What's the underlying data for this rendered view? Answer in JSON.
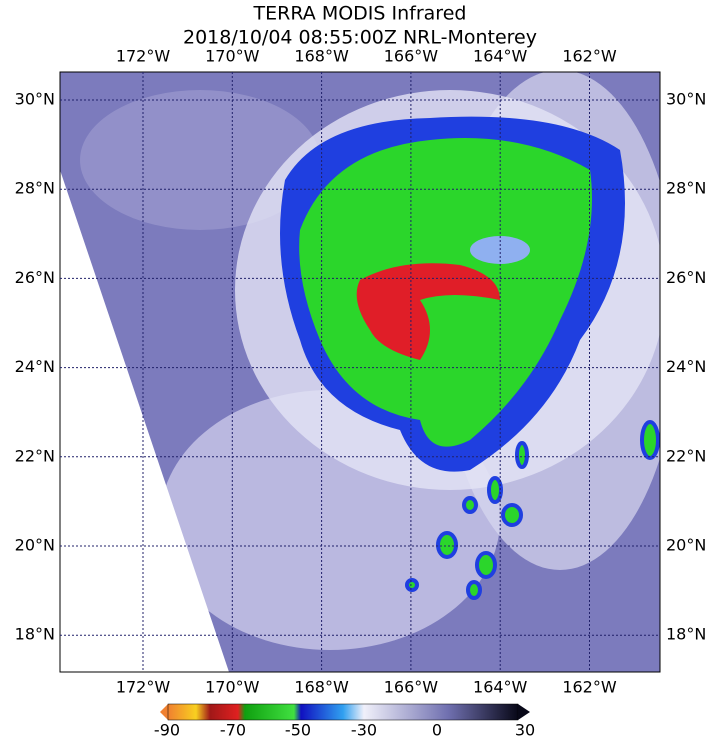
{
  "title": [
    "TERRA MODIS Infrared",
    "2018/10/04 08:55:00Z NRL-Monterey"
  ],
  "longitudes": [
    {
      "value": -172,
      "label": "172°W"
    },
    {
      "value": -170,
      "label": "170°W"
    },
    {
      "value": -168,
      "label": "168°W"
    },
    {
      "value": -166,
      "label": "166°W"
    },
    {
      "value": -164,
      "label": "164°W"
    },
    {
      "value": -162,
      "label": "162°W"
    }
  ],
  "latitudes": [
    {
      "value": 30,
      "label": "30°N"
    },
    {
      "value": 28,
      "label": "28°N"
    },
    {
      "value": 26,
      "label": "26°N"
    },
    {
      "value": 24,
      "label": "24°N"
    },
    {
      "value": 22,
      "label": "22°N"
    },
    {
      "value": 20,
      "label": "20°N"
    },
    {
      "value": 18,
      "label": "18°N"
    }
  ],
  "colorbar_ticks": [
    -90,
    -70,
    -50,
    -30,
    0,
    30
  ]
}
